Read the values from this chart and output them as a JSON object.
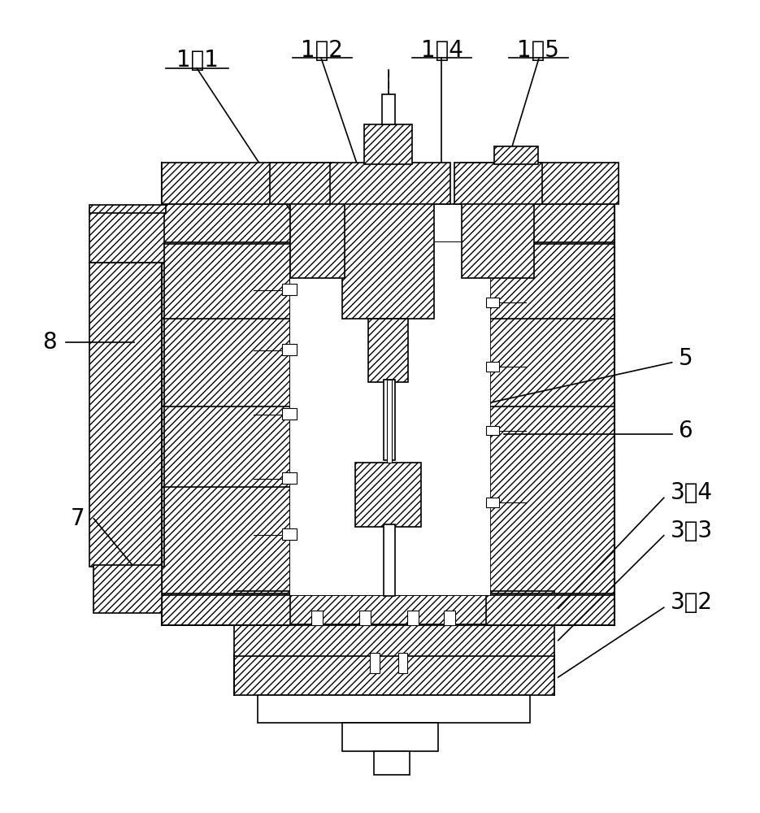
{
  "bg_color": "#ffffff",
  "line_color": "#000000",
  "figsize": [
    9.35,
    10.0
  ],
  "dpi": 100,
  "label_fontsize": 20,
  "hatch": "////",
  "lw": 1.2,
  "lw2": 1.5
}
